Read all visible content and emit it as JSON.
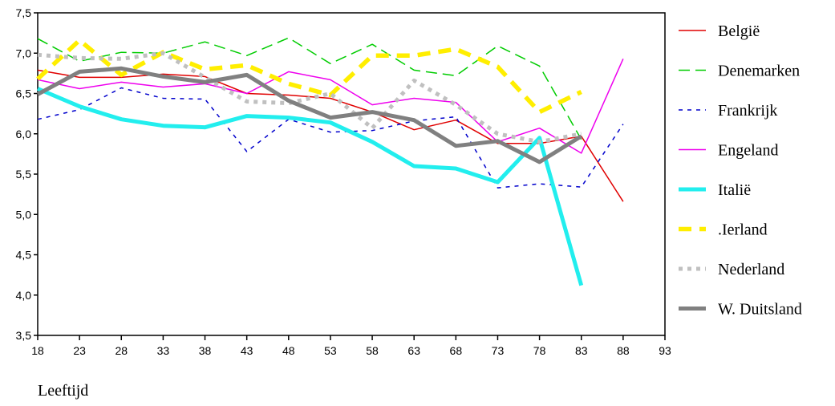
{
  "chart_data": {
    "type": "line",
    "title": "",
    "xlabel": "Leeftijd",
    "ylabel": "",
    "x": [
      18,
      23,
      28,
      33,
      38,
      43,
      48,
      53,
      58,
      63,
      68,
      73,
      78,
      83,
      88
    ],
    "xticks": [
      "18",
      "23",
      "28",
      "33",
      "38",
      "43",
      "48",
      "53",
      "58",
      "63",
      "68",
      "73",
      "78",
      "83",
      "88",
      "93"
    ],
    "xlim": [
      18,
      93
    ],
    "ylim": [
      3.5,
      7.5
    ],
    "yticks": [
      "3,5",
      "4,0",
      "4,5",
      "5,0",
      "5,5",
      "6,0",
      "6,5",
      "7,0",
      "7,5"
    ],
    "grid": false,
    "legend_position": "right",
    "series": [
      {
        "name": "België",
        "color": "#e00000",
        "values": [
          6.79,
          6.7,
          6.7,
          6.74,
          6.71,
          6.5,
          6.48,
          6.44,
          6.27,
          6.05,
          6.17,
          5.88,
          5.88,
          5.97,
          5.16
        ]
      },
      {
        "name": "Denemarken",
        "color": "#00cc00",
        "values": [
          7.18,
          6.9,
          7.01,
          7.0,
          7.14,
          6.97,
          7.19,
          6.87,
          7.11,
          6.79,
          6.72,
          7.09,
          6.84,
          5.93,
          null
        ]
      },
      {
        "name": "Frankrijk",
        "color": "#0000cc",
        "values": [
          6.18,
          6.3,
          6.57,
          6.44,
          6.43,
          5.78,
          6.18,
          6.02,
          6.04,
          6.16,
          6.21,
          5.33,
          5.38,
          5.34,
          6.12
        ]
      },
      {
        "name": "Engeland",
        "color": "#ee00ee",
        "values": [
          6.67,
          6.56,
          6.64,
          6.58,
          6.62,
          6.5,
          6.77,
          6.67,
          6.36,
          6.44,
          6.39,
          5.9,
          6.07,
          5.76,
          6.93
        ]
      },
      {
        "name": "Italië",
        "color": "#22eeee",
        "values": [
          6.56,
          6.34,
          6.18,
          6.1,
          6.08,
          6.22,
          6.2,
          6.14,
          5.9,
          5.6,
          5.57,
          5.4,
          5.95,
          4.12,
          null
        ]
      },
      {
        "name": ".Ierland",
        "color": "#ffee00",
        "values": [
          6.68,
          7.16,
          6.73,
          7.01,
          6.8,
          6.85,
          6.62,
          6.48,
          6.97,
          6.97,
          7.05,
          6.83,
          6.27,
          6.52,
          null
        ]
      },
      {
        "name": "Nederland",
        "color": "#c0c0c0",
        "values": [
          6.98,
          6.94,
          6.93,
          7.0,
          6.7,
          6.4,
          6.38,
          6.5,
          6.07,
          6.66,
          6.36,
          6.0,
          5.9,
          6.0,
          null
        ]
      },
      {
        "name": "W. Duitsland",
        "color": "#808080",
        "values": [
          6.49,
          6.77,
          6.81,
          6.71,
          6.64,
          6.73,
          6.41,
          6.2,
          6.27,
          6.17,
          5.85,
          5.91,
          5.65,
          5.97,
          null
        ]
      }
    ]
  }
}
